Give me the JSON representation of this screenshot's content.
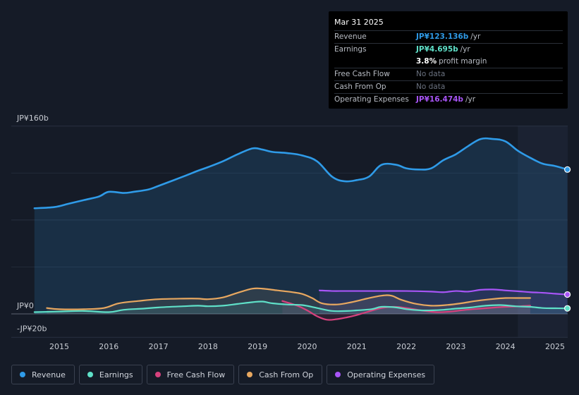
{
  "tooltip": {
    "date": "Mar 31 2025",
    "rows": [
      {
        "label": "Revenue",
        "value": "JP¥123.136b",
        "unit": "/yr",
        "color": "#2f9be8"
      },
      {
        "label": "Earnings",
        "value": "JP¥4.695b",
        "unit": "/yr",
        "color": "#5fe0c8"
      },
      {
        "label": "",
        "value": "3.8%",
        "unit": "profit margin",
        "color": "#ffffff"
      },
      {
        "label": "Free Cash Flow",
        "value": "No data",
        "unit": "",
        "color": "#6b7280"
      },
      {
        "label": "Cash From Op",
        "value": "No data",
        "unit": "",
        "color": "#6b7280"
      },
      {
        "label": "Operating Expenses",
        "value": "JP¥16.474b",
        "unit": "/yr",
        "color": "#a855f7"
      }
    ]
  },
  "chart_data": {
    "type": "line",
    "y_unit_labels": {
      "top": "JP¥160b",
      "zero": "JP¥0",
      "bottom": "-JP¥20b"
    },
    "ylim": [
      -20,
      160
    ],
    "xlim": [
      2014.25,
      2025.25
    ],
    "x_ticks": [
      "2015",
      "2016",
      "2017",
      "2018",
      "2019",
      "2020",
      "2021",
      "2022",
      "2023",
      "2024",
      "2025"
    ],
    "forecast_start": 2024.25,
    "series": [
      {
        "name": "Revenue",
        "color": "#2f9be8",
        "fill": true,
        "points": [
          [
            2014.5,
            90
          ],
          [
            2014.9,
            91
          ],
          [
            2015.2,
            94
          ],
          [
            2015.5,
            97
          ],
          [
            2015.8,
            100
          ],
          [
            2016.0,
            104
          ],
          [
            2016.3,
            103
          ],
          [
            2016.5,
            104
          ],
          [
            2016.8,
            106
          ],
          [
            2017.0,
            109
          ],
          [
            2017.5,
            117
          ],
          [
            2017.8,
            122
          ],
          [
            2018.0,
            125
          ],
          [
            2018.3,
            130
          ],
          [
            2018.6,
            136
          ],
          [
            2018.9,
            141
          ],
          [
            2019.1,
            140
          ],
          [
            2019.3,
            138
          ],
          [
            2019.6,
            137
          ],
          [
            2019.9,
            135
          ],
          [
            2020.2,
            130
          ],
          [
            2020.5,
            117
          ],
          [
            2020.75,
            113
          ],
          [
            2021.0,
            114
          ],
          [
            2021.25,
            117
          ],
          [
            2021.5,
            127
          ],
          [
            2021.8,
            127
          ],
          [
            2022.0,
            124
          ],
          [
            2022.25,
            123
          ],
          [
            2022.5,
            124
          ],
          [
            2022.75,
            131
          ],
          [
            2023.0,
            136
          ],
          [
            2023.25,
            143
          ],
          [
            2023.5,
            149
          ],
          [
            2023.75,
            149
          ],
          [
            2024.0,
            147
          ],
          [
            2024.25,
            139
          ],
          [
            2024.5,
            133
          ],
          [
            2024.75,
            128
          ],
          [
            2025.0,
            126
          ],
          [
            2025.25,
            123
          ]
        ]
      },
      {
        "name": "Earnings",
        "color": "#5fe0c8",
        "fill": true,
        "points": [
          [
            2014.5,
            1.5
          ],
          [
            2015.0,
            2
          ],
          [
            2015.5,
            2.5
          ],
          [
            2016.0,
            1.5
          ],
          [
            2016.3,
            3.5
          ],
          [
            2016.7,
            4.5
          ],
          [
            2017.0,
            5.5
          ],
          [
            2017.5,
            6.5
          ],
          [
            2017.8,
            7
          ],
          [
            2018.0,
            6.5
          ],
          [
            2018.3,
            7
          ],
          [
            2018.6,
            8.5
          ],
          [
            2018.9,
            10
          ],
          [
            2019.1,
            10.5
          ],
          [
            2019.3,
            9
          ],
          [
            2019.6,
            8
          ],
          [
            2019.9,
            7.5
          ],
          [
            2020.2,
            5
          ],
          [
            2020.5,
            2.5
          ],
          [
            2020.8,
            2.5
          ],
          [
            2021.0,
            3
          ],
          [
            2021.3,
            4
          ],
          [
            2021.5,
            6
          ],
          [
            2021.8,
            5.5
          ],
          [
            2022.0,
            4
          ],
          [
            2022.3,
            3
          ],
          [
            2022.5,
            3
          ],
          [
            2022.75,
            3.5
          ],
          [
            2023.0,
            4.5
          ],
          [
            2023.3,
            5.5
          ],
          [
            2023.6,
            7
          ],
          [
            2023.9,
            7.5
          ],
          [
            2024.2,
            6.5
          ],
          [
            2024.5,
            6
          ],
          [
            2024.75,
            5
          ],
          [
            2025.0,
            4.8
          ],
          [
            2025.25,
            4.7
          ]
        ]
      },
      {
        "name": "Free Cash Flow",
        "color": "#d6417d",
        "fill": true,
        "points": [
          [
            2019.5,
            11
          ],
          [
            2019.8,
            7
          ],
          [
            2020.0,
            3
          ],
          [
            2020.2,
            -2
          ],
          [
            2020.4,
            -5
          ],
          [
            2020.6,
            -4.5
          ],
          [
            2020.8,
            -3
          ],
          [
            2021.0,
            -1
          ],
          [
            2021.2,
            1.5
          ],
          [
            2021.5,
            5
          ],
          [
            2021.75,
            6
          ],
          [
            2022.0,
            5
          ],
          [
            2022.3,
            3
          ],
          [
            2022.6,
            1.5
          ],
          [
            2022.9,
            2
          ],
          [
            2023.2,
            3.5
          ],
          [
            2023.5,
            4.5
          ],
          [
            2023.8,
            5.5
          ],
          [
            2024.0,
            6
          ],
          [
            2024.3,
            6.5
          ],
          [
            2024.5,
            7
          ]
        ]
      },
      {
        "name": "Cash From Op",
        "color": "#e8a860",
        "fill": true,
        "points": [
          [
            2014.75,
            5
          ],
          [
            2015.0,
            4
          ],
          [
            2015.5,
            4
          ],
          [
            2015.9,
            5
          ],
          [
            2016.2,
            9
          ],
          [
            2016.6,
            11
          ],
          [
            2017.0,
            12.5
          ],
          [
            2017.5,
            13
          ],
          [
            2017.8,
            13
          ],
          [
            2018.0,
            12.5
          ],
          [
            2018.3,
            14
          ],
          [
            2018.6,
            18
          ],
          [
            2018.9,
            21.5
          ],
          [
            2019.1,
            21.5
          ],
          [
            2019.4,
            20
          ],
          [
            2019.7,
            18.5
          ],
          [
            2019.9,
            17
          ],
          [
            2020.1,
            13.5
          ],
          [
            2020.3,
            9
          ],
          [
            2020.6,
            8
          ],
          [
            2020.9,
            10
          ],
          [
            2021.2,
            13
          ],
          [
            2021.5,
            15.5
          ],
          [
            2021.7,
            15.5
          ],
          [
            2021.9,
            12
          ],
          [
            2022.2,
            8.5
          ],
          [
            2022.5,
            7
          ],
          [
            2022.8,
            7.5
          ],
          [
            2023.1,
            9
          ],
          [
            2023.4,
            11
          ],
          [
            2023.7,
            12.5
          ],
          [
            2024.0,
            13.5
          ],
          [
            2024.3,
            13.5
          ],
          [
            2024.5,
            13.5
          ]
        ]
      },
      {
        "name": "Operating Expenses",
        "color": "#a855f7",
        "fill": true,
        "points": [
          [
            2020.25,
            20
          ],
          [
            2020.5,
            19.5
          ],
          [
            2020.75,
            19.5
          ],
          [
            2021.0,
            19.5
          ],
          [
            2021.5,
            19.5
          ],
          [
            2022.0,
            19.5
          ],
          [
            2022.5,
            19
          ],
          [
            2022.75,
            18.5
          ],
          [
            2023.0,
            19.5
          ],
          [
            2023.25,
            19
          ],
          [
            2023.5,
            20.5
          ],
          [
            2023.75,
            20.8
          ],
          [
            2024.0,
            20
          ],
          [
            2024.25,
            19.3
          ],
          [
            2024.5,
            18.5
          ],
          [
            2024.75,
            18
          ],
          [
            2025.0,
            17.2
          ],
          [
            2025.25,
            16.5
          ]
        ]
      }
    ]
  },
  "legend": [
    {
      "label": "Revenue",
      "color": "#2f9be8"
    },
    {
      "label": "Earnings",
      "color": "#5fe0c8"
    },
    {
      "label": "Free Cash Flow",
      "color": "#d6417d"
    },
    {
      "label": "Cash From Op",
      "color": "#e8a860"
    },
    {
      "label": "Operating Expenses",
      "color": "#a855f7"
    }
  ]
}
